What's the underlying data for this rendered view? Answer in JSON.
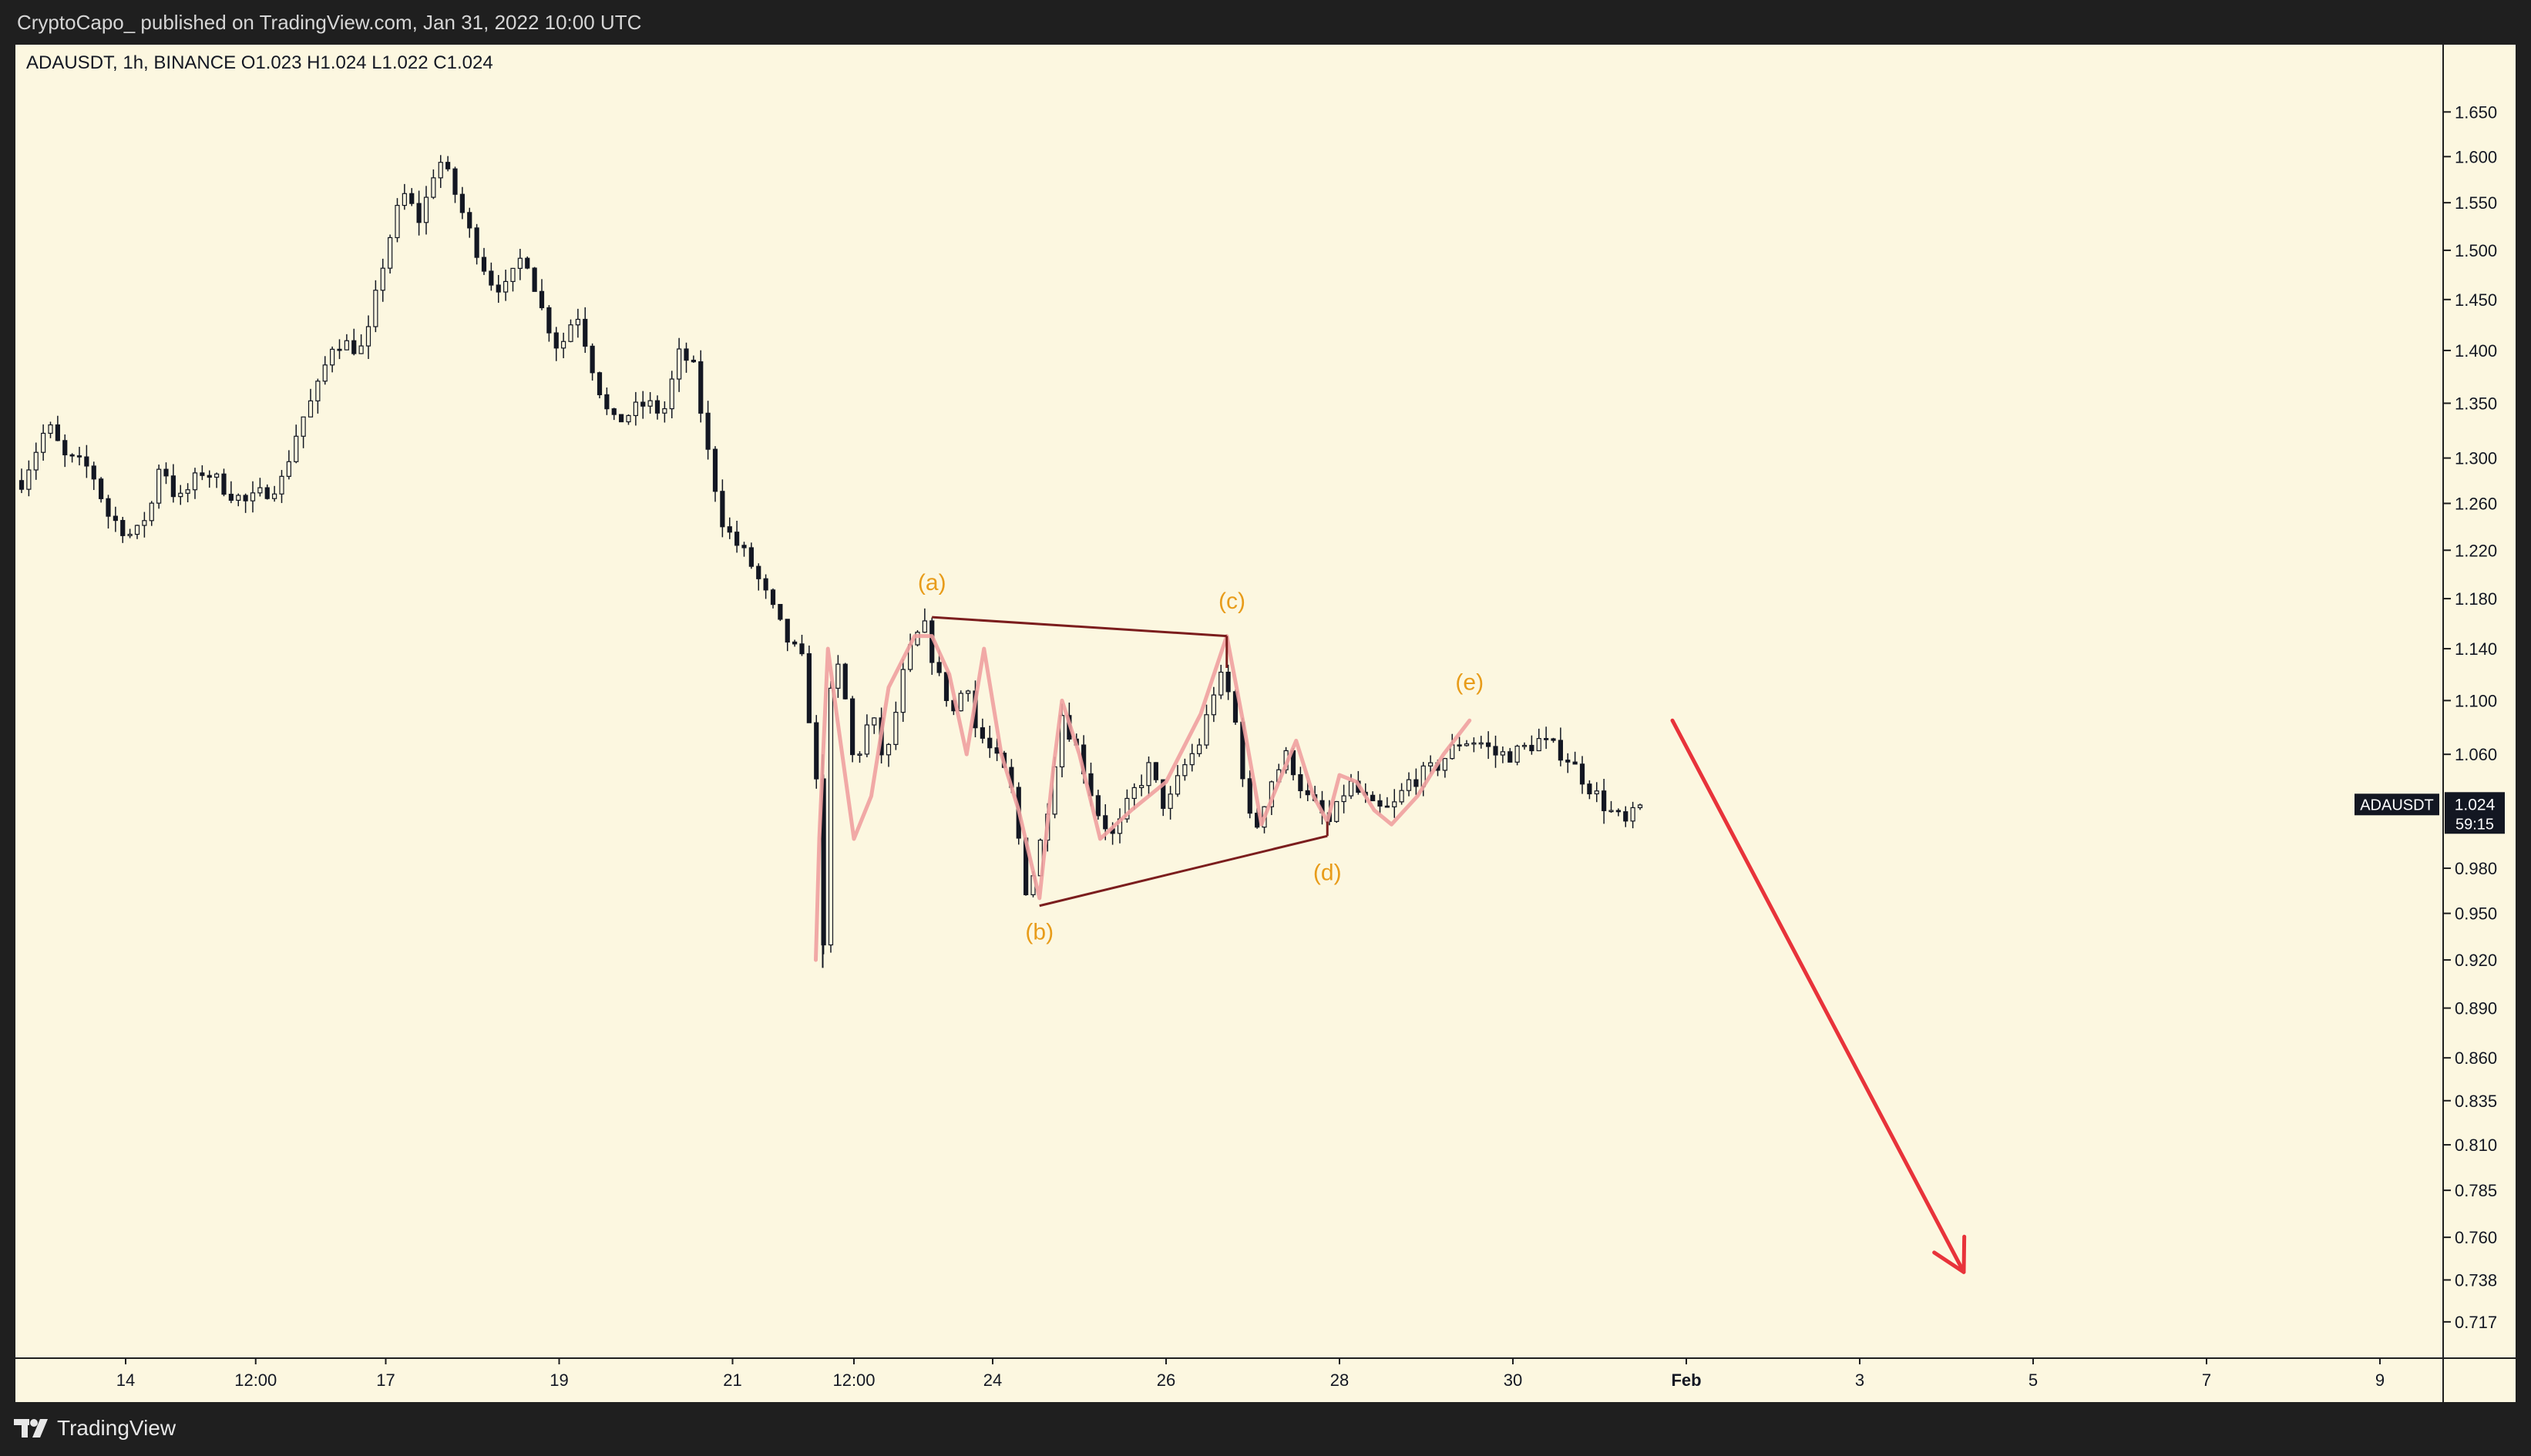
{
  "header": {
    "published_line": "CryptoCapo_  published on TradingView.com, Jan 31, 2022 10:00 UTC"
  },
  "legend": {
    "symbol_line": "ADAUSDT, 1h, BINANCE  O1.023  H1.024  L1.022  C1.024"
  },
  "price_tag": {
    "symbol": "ADAUSDT",
    "price": "1.024",
    "countdown": "59:15"
  },
  "footer": {
    "brand": "TradingView"
  },
  "colors": {
    "background": "#fcf7e0",
    "frame": "#1f1f1f",
    "candle": "#131722",
    "triangle": "#7b1d1d",
    "wave_curve": "#f0a0a0",
    "wave_label": "#e89c1a",
    "arrow": "#e8333a"
  },
  "chart_data": {
    "type": "candlestick",
    "symbol": "ADAUSDT",
    "timeframe": "1h",
    "exchange": "BINANCE",
    "y_axis": {
      "ticks": [
        "1.650",
        "1.600",
        "1.550",
        "1.500",
        "1.450",
        "1.400",
        "1.350",
        "1.300",
        "1.260",
        "1.220",
        "1.180",
        "1.140",
        "1.100",
        "1.060",
        "0.980",
        "0.950",
        "0.920",
        "0.890",
        "0.860",
        "0.835",
        "0.810",
        "0.785",
        "0.760",
        "0.738",
        "0.717"
      ],
      "scale": "log",
      "range": [
        0.706,
        1.683
      ]
    },
    "x_axis": {
      "ticks": [
        {
          "label": "14",
          "d": 0
        },
        {
          "label": "12:00",
          "d": 0.75
        },
        {
          "label": "17",
          "d": 1.5
        },
        {
          "label": "19",
          "d": 2.5
        },
        {
          "label": "21",
          "d": 3.5
        },
        {
          "label": "12:00",
          "d": 4.2
        },
        {
          "label": "24",
          "d": 5.0
        },
        {
          "label": "26",
          "d": 6.0
        },
        {
          "label": "28",
          "d": 7.0
        },
        {
          "label": "30",
          "d": 8.0
        },
        {
          "label": "Feb",
          "d": 9.0
        },
        {
          "label": "3",
          "d": 10.0
        },
        {
          "label": "5",
          "d": 11.0
        },
        {
          "label": "7",
          "d": 12.0
        },
        {
          "label": "9",
          "d": 13.0
        }
      ]
    },
    "price_path": [
      [
        -0.6,
        1.28
      ],
      [
        -0.45,
        1.33
      ],
      [
        -0.35,
        1.3
      ],
      [
        -0.2,
        1.29
      ],
      [
        -0.1,
        1.25
      ],
      [
        0.05,
        1.23
      ],
      [
        0.15,
        1.26
      ],
      [
        0.2,
        1.3
      ],
      [
        0.3,
        1.26
      ],
      [
        0.45,
        1.29
      ],
      [
        0.6,
        1.27
      ],
      [
        0.7,
        1.26
      ],
      [
        0.9,
        1.28
      ],
      [
        1.0,
        1.33
      ],
      [
        1.1,
        1.36
      ],
      [
        1.2,
        1.41
      ],
      [
        1.38,
        1.4
      ],
      [
        1.5,
        1.5
      ],
      [
        1.6,
        1.56
      ],
      [
        1.7,
        1.53
      ],
      [
        1.8,
        1.6
      ],
      [
        1.88,
        1.57
      ],
      [
        1.98,
        1.52
      ],
      [
        2.1,
        1.47
      ],
      [
        2.2,
        1.46
      ],
      [
        2.3,
        1.5
      ],
      [
        2.4,
        1.44
      ],
      [
        2.5,
        1.4
      ],
      [
        2.6,
        1.44
      ],
      [
        2.7,
        1.38
      ],
      [
        2.8,
        1.33
      ],
      [
        2.9,
        1.34
      ],
      [
        3.0,
        1.35
      ],
      [
        3.1,
        1.34
      ],
      [
        3.2,
        1.4
      ],
      [
        3.28,
        1.38
      ],
      [
        3.35,
        1.31
      ],
      [
        3.45,
        1.24
      ],
      [
        3.6,
        1.21
      ],
      [
        3.7,
        1.18
      ],
      [
        3.8,
        1.15
      ],
      [
        3.9,
        1.13
      ],
      [
        3.98,
        1.05
      ],
      [
        4.02,
        0.91
      ],
      [
        4.06,
        1.1
      ],
      [
        4.12,
        1.13
      ],
      [
        4.2,
        1.05
      ],
      [
        4.3,
        1.09
      ],
      [
        4.38,
        1.05
      ],
      [
        4.5,
        1.13
      ],
      [
        4.6,
        1.16
      ],
      [
        4.68,
        1.12
      ],
      [
        4.78,
        1.09
      ],
      [
        4.85,
        1.12
      ],
      [
        4.9,
        1.08
      ],
      [
        5.0,
        1.06
      ],
      [
        5.1,
        1.04
      ],
      [
        5.2,
        0.96
      ],
      [
        5.3,
        1.01
      ],
      [
        5.4,
        1.09
      ],
      [
        5.5,
        1.06
      ],
      [
        5.6,
        1.02
      ],
      [
        5.7,
        1.0
      ],
      [
        5.8,
        1.03
      ],
      [
        5.9,
        1.05
      ],
      [
        6.0,
        1.02
      ],
      [
        6.1,
        1.05
      ],
      [
        6.2,
        1.07
      ],
      [
        6.3,
        1.12
      ],
      [
        6.38,
        1.1
      ],
      [
        6.45,
        1.04
      ],
      [
        6.5,
        1.0
      ],
      [
        6.6,
        1.04
      ],
      [
        6.7,
        1.06
      ],
      [
        6.8,
        1.03
      ],
      [
        6.95,
        1.01
      ],
      [
        7.05,
        1.04
      ],
      [
        7.2,
        1.02
      ],
      [
        7.3,
        1.02
      ],
      [
        7.4,
        1.04
      ],
      [
        7.55,
        1.05
      ],
      [
        7.7,
        1.07
      ],
      [
        7.8,
        1.07
      ],
      [
        7.9,
        1.06
      ],
      [
        8.0,
        1.06
      ],
      [
        8.15,
        1.07
      ],
      [
        8.3,
        1.06
      ],
      [
        8.42,
        1.04
      ],
      [
        8.55,
        1.02
      ],
      [
        8.65,
        1.01
      ],
      [
        8.75,
        1.024
      ]
    ],
    "annotations": {
      "wave_labels": [
        {
          "text": "(a)",
          "d": 4.65,
          "price": 1.187
        },
        {
          "text": "(b)",
          "d": 5.27,
          "price": 0.933
        },
        {
          "text": "(c)",
          "d": 6.38,
          "price": 1.172
        },
        {
          "text": "(d)",
          "d": 6.93,
          "price": 0.972
        },
        {
          "text": "(e)",
          "d": 7.75,
          "price": 1.108
        }
      ],
      "triangle": {
        "upper": [
          [
            4.65,
            1.165
          ],
          [
            6.35,
            1.15
          ]
        ],
        "lower": [
          [
            5.27,
            0.955
          ],
          [
            6.93,
            1.002
          ]
        ],
        "upper_close": [
          [
            6.35,
            1.15
          ],
          [
            6.35,
            1.125
          ]
        ],
        "lower_close": [
          [
            6.93,
            1.002
          ],
          [
            6.93,
            1.012
          ]
        ]
      },
      "wave_curve": [
        [
          3.98,
          0.92
        ],
        [
          4.0,
          1.0
        ],
        [
          4.05,
          1.14
        ],
        [
          4.1,
          1.09
        ],
        [
          4.2,
          1.0
        ],
        [
          4.3,
          1.03
        ],
        [
          4.4,
          1.11
        ],
        [
          4.55,
          1.15
        ],
        [
          4.65,
          1.15
        ],
        [
          4.75,
          1.12
        ],
        [
          4.85,
          1.06
        ],
        [
          4.95,
          1.14
        ],
        [
          5.05,
          1.06
        ],
        [
          5.15,
          1.02
        ],
        [
          5.27,
          0.96
        ],
        [
          5.35,
          1.05
        ],
        [
          5.4,
          1.1
        ],
        [
          5.5,
          1.06
        ],
        [
          5.62,
          1.0
        ],
        [
          5.8,
          1.02
        ],
        [
          6.0,
          1.04
        ],
        [
          6.2,
          1.09
        ],
        [
          6.35,
          1.15
        ],
        [
          6.45,
          1.08
        ],
        [
          6.55,
          1.01
        ],
        [
          6.65,
          1.04
        ],
        [
          6.75,
          1.07
        ],
        [
          6.85,
          1.03
        ],
        [
          6.93,
          1.012
        ],
        [
          7.0,
          1.045
        ],
        [
          7.1,
          1.04
        ],
        [
          7.2,
          1.02
        ],
        [
          7.3,
          1.01
        ],
        [
          7.45,
          1.03
        ],
        [
          7.6,
          1.06
        ],
        [
          7.75,
          1.085
        ]
      ],
      "arrow": {
        "from": [
          8.92,
          1.085
        ],
        "to": [
          10.6,
          0.742
        ]
      }
    }
  }
}
